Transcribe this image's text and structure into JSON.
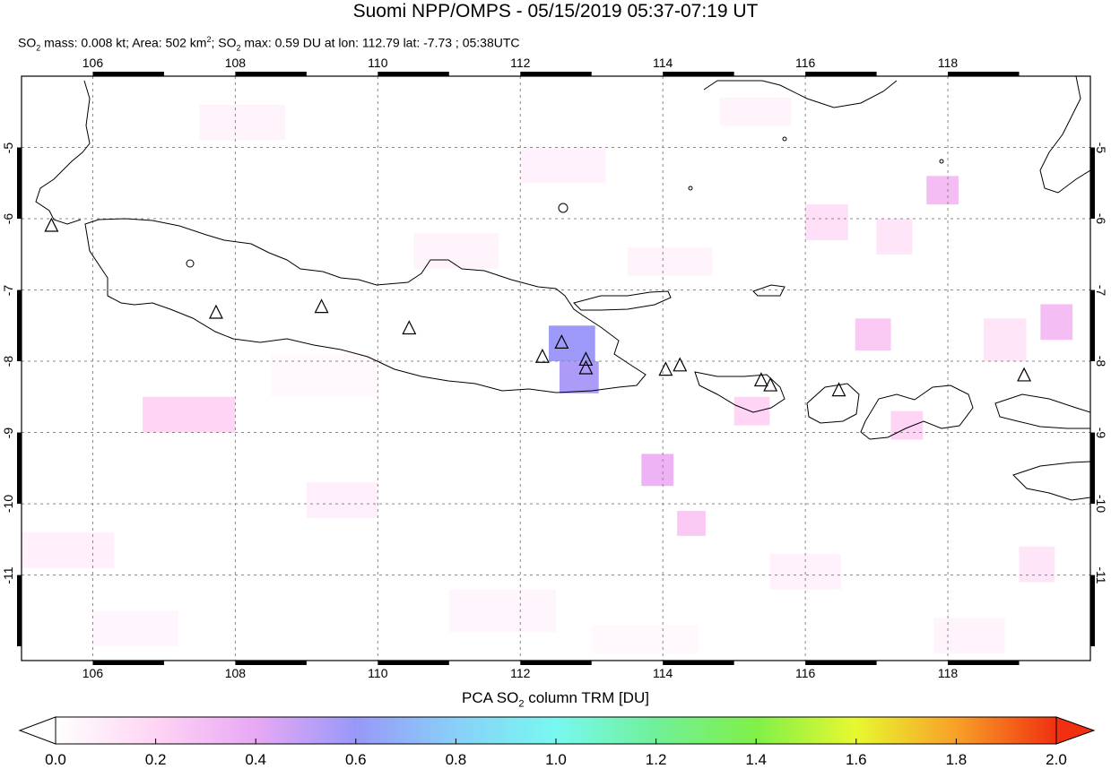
{
  "header": {
    "title": "Suomi NPP/OMPS - 05/15/2019 05:37-07:19 UT",
    "stats": {
      "p1": "SO",
      "p1_sub": "2",
      "p2": " mass: 0.008 kt; Area: 502 km",
      "p2_sup": "2",
      "p3": "; SO",
      "p3_sub": "2",
      "p4": " max: 0.59 DU at lon: 112.79 lat: -7.73 ; 05:38UTC"
    }
  },
  "map": {
    "lon_range": [
      105,
      120
    ],
    "lat_range": [
      -12.2,
      -4
    ],
    "lon_ticks": [
      "106",
      "108",
      "110",
      "112",
      "114",
      "116",
      "118"
    ],
    "lat_ticks": [
      "-5",
      "-6",
      "-7",
      "-8",
      "-9",
      "-10",
      "-11"
    ],
    "volcanoes": [
      [
        105.42,
        -6.1
      ],
      [
        107.73,
        -7.32
      ],
      [
        109.21,
        -7.24
      ],
      [
        110.44,
        -7.54
      ],
      [
        112.31,
        -7.94
      ],
      [
        112.58,
        -7.74
      ],
      [
        112.92,
        -7.98
      ],
      [
        112.92,
        -8.1
      ],
      [
        114.04,
        -8.12
      ],
      [
        114.24,
        -8.06
      ],
      [
        115.38,
        -8.27
      ],
      [
        115.51,
        -8.34
      ],
      [
        116.47,
        -8.41
      ],
      [
        119.07,
        -8.2
      ]
    ],
    "so2_cells": [
      {
        "lon": 112.4,
        "lat": -7.5,
        "dlon": 0.65,
        "dlat": 0.5,
        "du": 0.59
      },
      {
        "lon": 112.55,
        "lat": -8.0,
        "dlon": 0.55,
        "dlat": 0.45,
        "du": 0.55
      },
      {
        "lon": 113.7,
        "lat": -9.3,
        "dlon": 0.45,
        "dlat": 0.45,
        "du": 0.35
      },
      {
        "lon": 117.7,
        "lat": -5.4,
        "dlon": 0.45,
        "dlat": 0.4,
        "du": 0.3
      },
      {
        "lon": 119.3,
        "lat": -7.2,
        "dlon": 0.45,
        "dlat": 0.5,
        "du": 0.3
      },
      {
        "lon": 116.7,
        "lat": -7.4,
        "dlon": 0.5,
        "dlat": 0.45,
        "du": 0.25
      },
      {
        "lon": 106.7,
        "lat": -8.5,
        "dlon": 1.3,
        "dlat": 0.5,
        "du": 0.2
      },
      {
        "lon": 114.2,
        "lat": -10.1,
        "dlon": 0.4,
        "dlat": 0.35,
        "du": 0.25
      },
      {
        "lon": 115.0,
        "lat": -8.5,
        "dlon": 0.5,
        "dlat": 0.4,
        "du": 0.2
      },
      {
        "lon": 117.2,
        "lat": -8.7,
        "dlon": 0.45,
        "dlat": 0.4,
        "du": 0.2
      },
      {
        "lon": 116.0,
        "lat": -5.8,
        "dlon": 0.6,
        "dlat": 0.5,
        "du": 0.15
      },
      {
        "lon": 117.0,
        "lat": -6.0,
        "dlon": 0.5,
        "dlat": 0.5,
        "du": 0.12
      },
      {
        "lon": 118.5,
        "lat": -7.4,
        "dlon": 0.6,
        "dlat": 0.6,
        "du": 0.12
      },
      {
        "lon": 119.0,
        "lat": -10.6,
        "dlon": 0.5,
        "dlat": 0.5,
        "du": 0.12
      },
      {
        "lon": 109.0,
        "lat": -9.7,
        "dlon": 1.0,
        "dlat": 0.5,
        "du": 0.08
      },
      {
        "lon": 112.0,
        "lat": -5.0,
        "dlon": 1.2,
        "dlat": 0.5,
        "du": 0.06
      },
      {
        "lon": 107.5,
        "lat": -4.4,
        "dlon": 1.2,
        "dlat": 0.5,
        "du": 0.05
      },
      {
        "lon": 110.5,
        "lat": -6.2,
        "dlon": 1.2,
        "dlat": 0.5,
        "du": 0.05
      },
      {
        "lon": 113.5,
        "lat": -6.4,
        "dlon": 1.2,
        "dlat": 0.4,
        "du": 0.05
      },
      {
        "lon": 105.0,
        "lat": -10.4,
        "dlon": 1.3,
        "dlat": 0.5,
        "du": 0.07
      },
      {
        "lon": 111.0,
        "lat": -11.2,
        "dlon": 1.5,
        "dlat": 0.6,
        "du": 0.04
      },
      {
        "lon": 115.5,
        "lat": -10.7,
        "dlon": 1.0,
        "dlat": 0.5,
        "du": 0.06
      },
      {
        "lon": 106.0,
        "lat": -11.5,
        "dlon": 1.2,
        "dlat": 0.5,
        "du": 0.04
      },
      {
        "lon": 113.0,
        "lat": -11.7,
        "dlon": 1.5,
        "dlat": 0.4,
        "du": 0.03
      },
      {
        "lon": 117.8,
        "lat": -11.6,
        "dlon": 1.0,
        "dlat": 0.5,
        "du": 0.05
      },
      {
        "lon": 108.5,
        "lat": -7.9,
        "dlon": 1.5,
        "dlat": 0.6,
        "du": 0.03
      },
      {
        "lon": 114.8,
        "lat": -4.3,
        "dlon": 1.0,
        "dlat": 0.4,
        "du": 0.05
      }
    ]
  },
  "colorbar": {
    "title_pre": "PCA SO",
    "title_sub": "2",
    "title_post": " column TRM [DU]",
    "ticks": [
      "0.0",
      "0.2",
      "0.4",
      "0.6",
      "0.8",
      "1.0",
      "1.2",
      "1.4",
      "1.6",
      "1.8",
      "2.0"
    ],
    "min": 0,
    "max": 2,
    "stops": [
      "#ffffff",
      "#ffd4f4",
      "#e8a8f4",
      "#9898f8",
      "#88d0f8",
      "#78f8f0",
      "#70f098",
      "#80f048",
      "#e8f830",
      "#f8a028",
      "#f03010"
    ]
  }
}
